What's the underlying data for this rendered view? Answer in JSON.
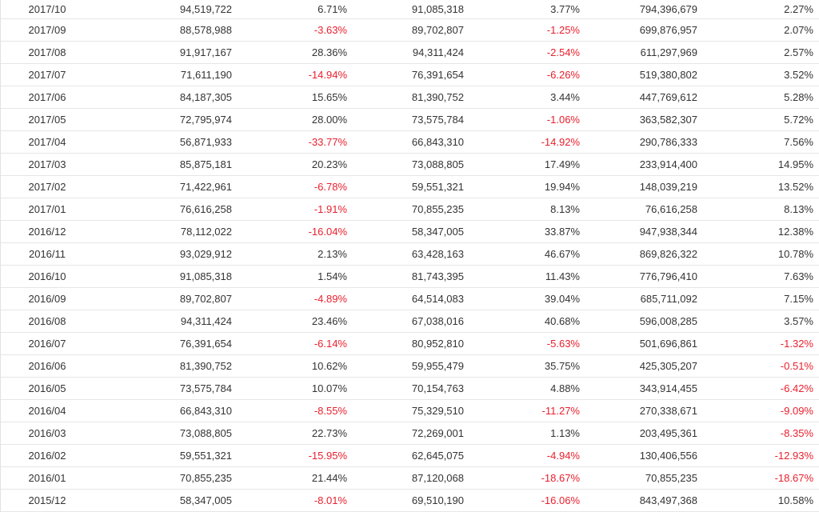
{
  "colors": {
    "text": "#333333",
    "negative": "#e8202e",
    "row_border": "#e6e6e6"
  },
  "table": {
    "rows": [
      [
        "2017/10",
        "94,519,722",
        "6.71%",
        "91,085,318",
        "3.77%",
        "794,396,679",
        "2.27%"
      ],
      [
        "2017/09",
        "88,578,988",
        "-3.63%",
        "89,702,807",
        "-1.25%",
        "699,876,957",
        "2.07%"
      ],
      [
        "2017/08",
        "91,917,167",
        "28.36%",
        "94,311,424",
        "-2.54%",
        "611,297,969",
        "2.57%"
      ],
      [
        "2017/07",
        "71,611,190",
        "-14.94%",
        "76,391,654",
        "-6.26%",
        "519,380,802",
        "3.52%"
      ],
      [
        "2017/06",
        "84,187,305",
        "15.65%",
        "81,390,752",
        "3.44%",
        "447,769,612",
        "5.28%"
      ],
      [
        "2017/05",
        "72,795,974",
        "28.00%",
        "73,575,784",
        "-1.06%",
        "363,582,307",
        "5.72%"
      ],
      [
        "2017/04",
        "56,871,933",
        "-33.77%",
        "66,843,310",
        "-14.92%",
        "290,786,333",
        "7.56%"
      ],
      [
        "2017/03",
        "85,875,181",
        "20.23%",
        "73,088,805",
        "17.49%",
        "233,914,400",
        "14.95%"
      ],
      [
        "2017/02",
        "71,422,961",
        "-6.78%",
        "59,551,321",
        "19.94%",
        "148,039,219",
        "13.52%"
      ],
      [
        "2017/01",
        "76,616,258",
        "-1.91%",
        "70,855,235",
        "8.13%",
        "76,616,258",
        "8.13%"
      ],
      [
        "2016/12",
        "78,112,022",
        "-16.04%",
        "58,347,005",
        "33.87%",
        "947,938,344",
        "12.38%"
      ],
      [
        "2016/11",
        "93,029,912",
        "2.13%",
        "63,428,163",
        "46.67%",
        "869,826,322",
        "10.78%"
      ],
      [
        "2016/10",
        "91,085,318",
        "1.54%",
        "81,743,395",
        "11.43%",
        "776,796,410",
        "7.63%"
      ],
      [
        "2016/09",
        "89,702,807",
        "-4.89%",
        "64,514,083",
        "39.04%",
        "685,711,092",
        "7.15%"
      ],
      [
        "2016/08",
        "94,311,424",
        "23.46%",
        "67,038,016",
        "40.68%",
        "596,008,285",
        "3.57%"
      ],
      [
        "2016/07",
        "76,391,654",
        "-6.14%",
        "80,952,810",
        "-5.63%",
        "501,696,861",
        "-1.32%"
      ],
      [
        "2016/06",
        "81,390,752",
        "10.62%",
        "59,955,479",
        "35.75%",
        "425,305,207",
        "-0.51%"
      ],
      [
        "2016/05",
        "73,575,784",
        "10.07%",
        "70,154,763",
        "4.88%",
        "343,914,455",
        "-6.42%"
      ],
      [
        "2016/04",
        "66,843,310",
        "-8.55%",
        "75,329,510",
        "-11.27%",
        "270,338,671",
        "-9.09%"
      ],
      [
        "2016/03",
        "73,088,805",
        "22.73%",
        "72,269,001",
        "1.13%",
        "203,495,361",
        "-8.35%"
      ],
      [
        "2016/02",
        "59,551,321",
        "-15.95%",
        "62,645,075",
        "-4.94%",
        "130,406,556",
        "-12.93%"
      ],
      [
        "2016/01",
        "70,855,235",
        "21.44%",
        "87,120,068",
        "-18.67%",
        "70,855,235",
        "-18.67%"
      ],
      [
        "2015/12",
        "58,347,005",
        "-8.01%",
        "69,510,190",
        "-16.06%",
        "843,497,368",
        "10.58%"
      ]
    ]
  }
}
